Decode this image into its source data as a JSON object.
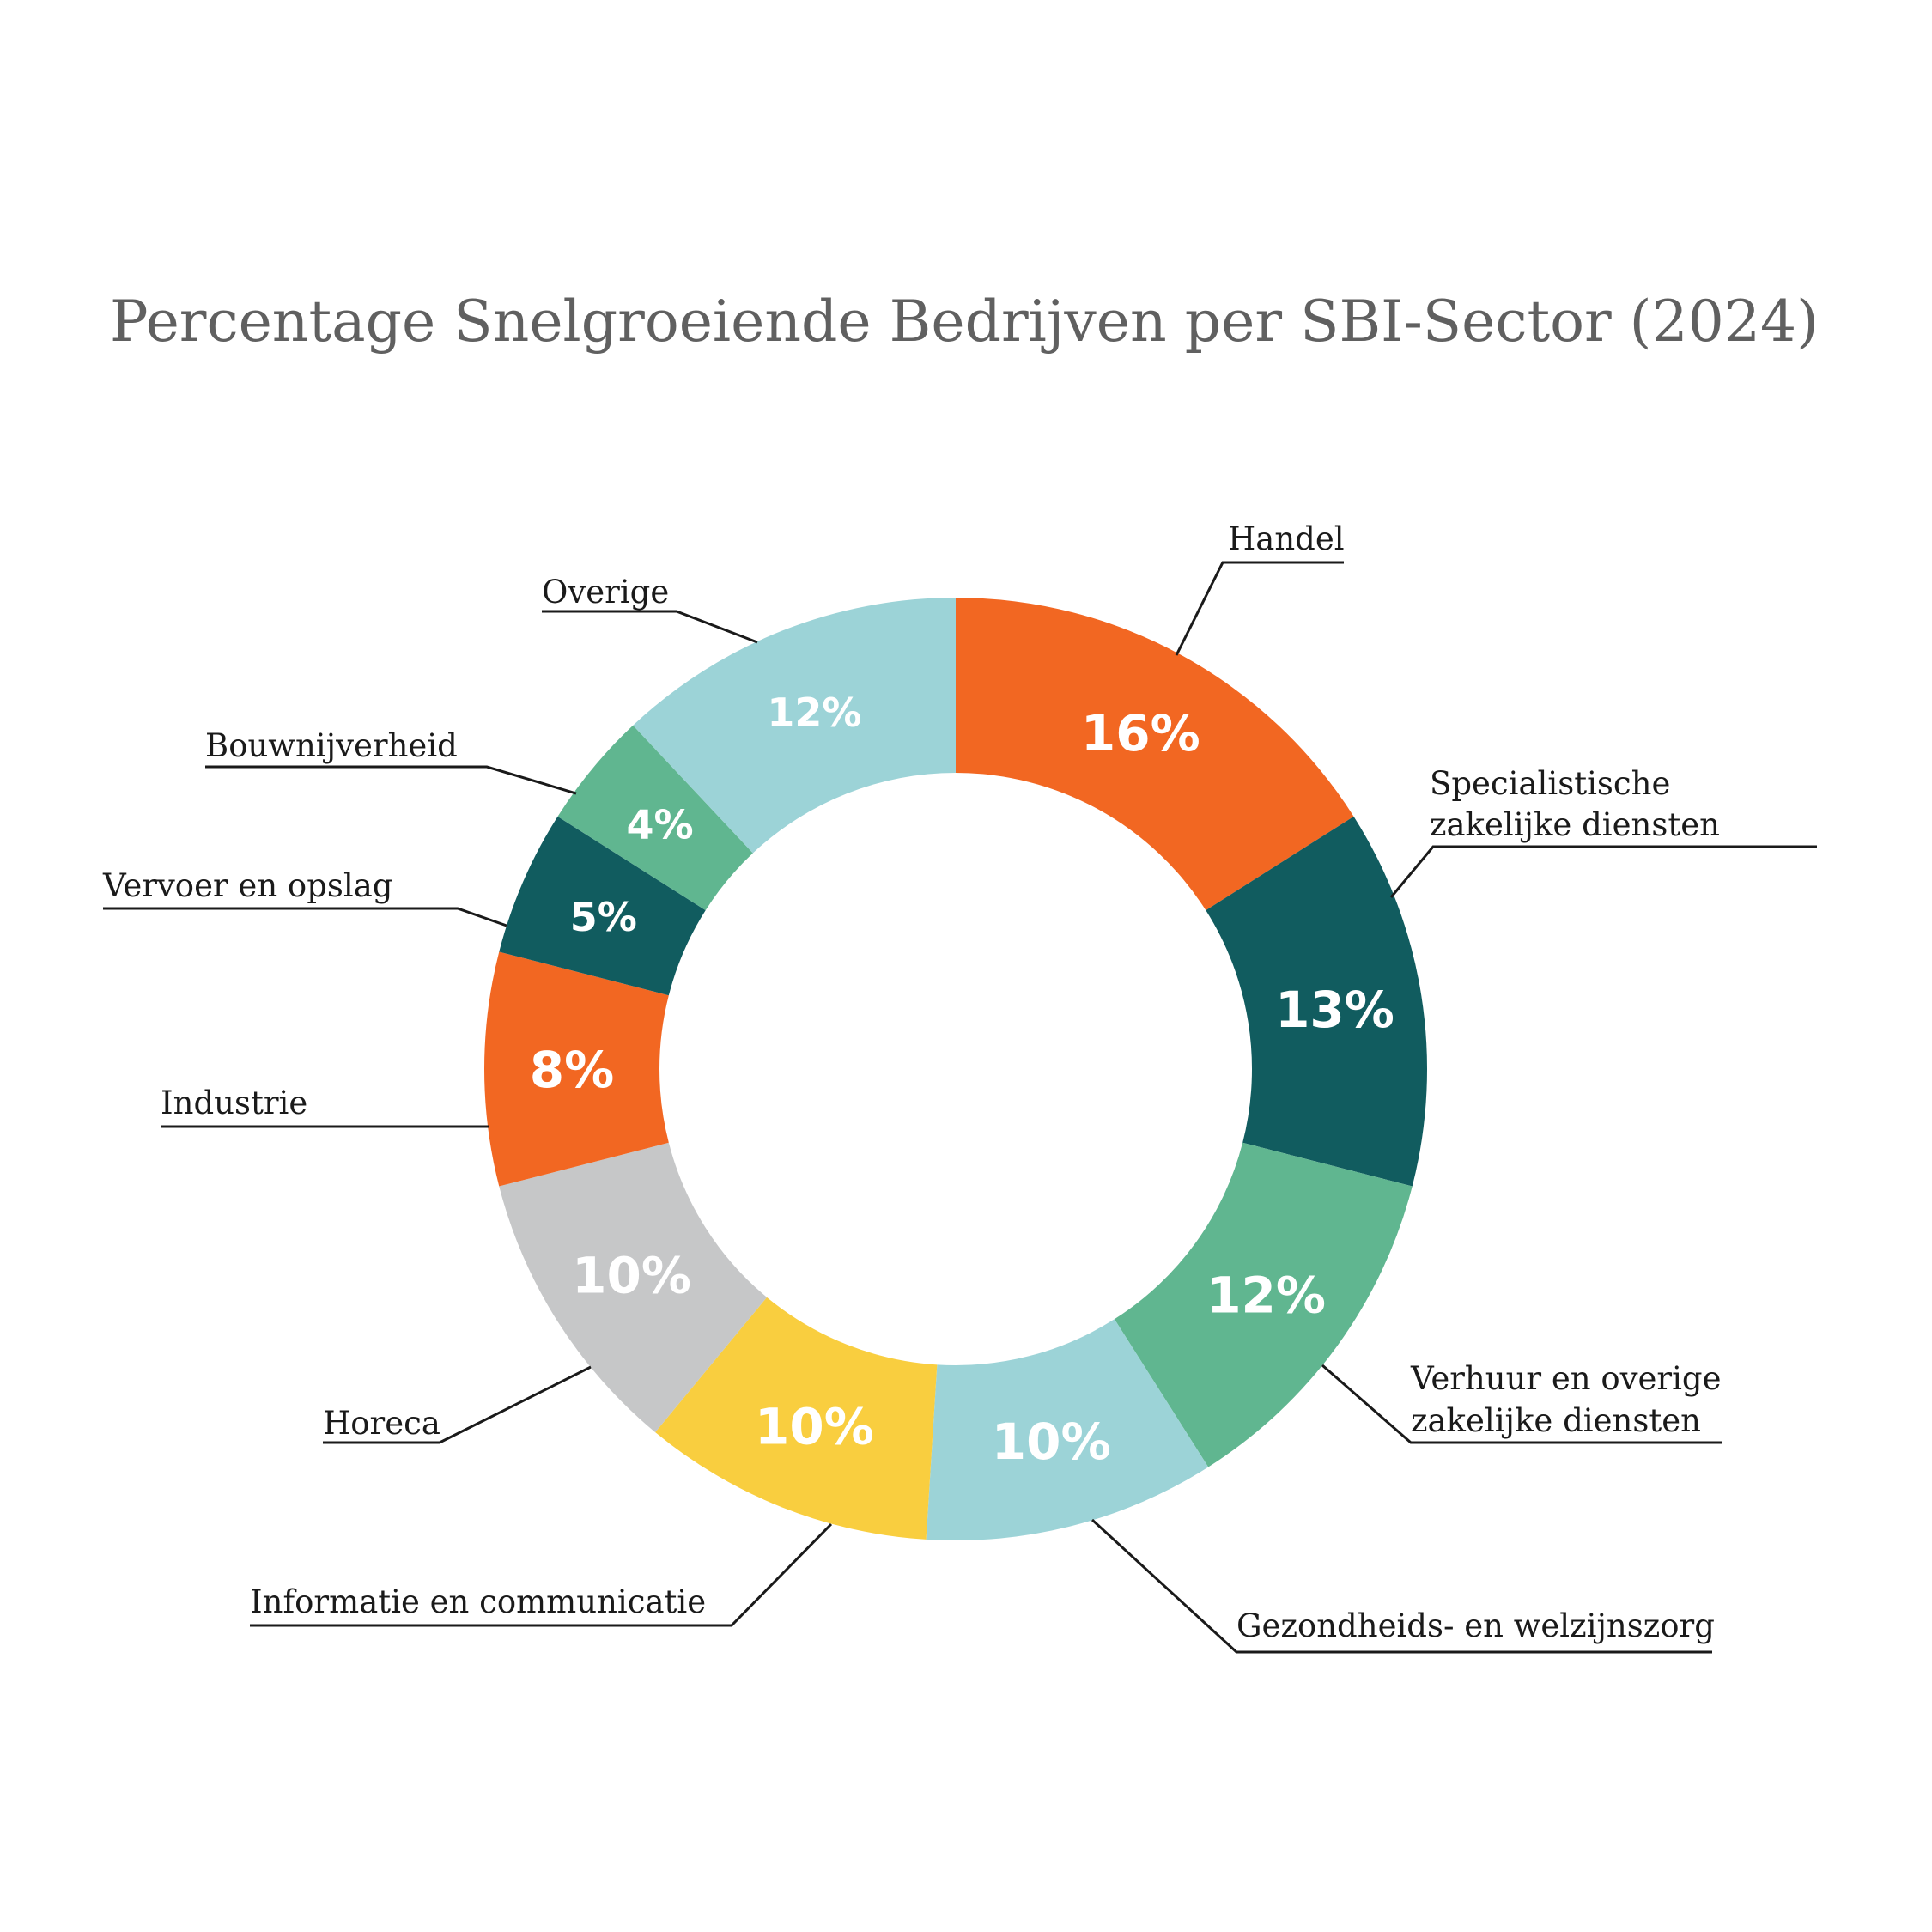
{
  "chart_data": {
    "type": "pie",
    "variant": "donut",
    "title": "Percentage Snelgroeiende Bedrijven per SBI-Sector (2024)",
    "unit": "%",
    "slices": [
      {
        "label": "Handel",
        "value": 16,
        "display": "16%",
        "color": "#F26722"
      },
      {
        "label": "Specialistische zakelijke diensten",
        "value": 13,
        "display": "13%",
        "color": "#115C5F"
      },
      {
        "label": "Verhuur en overige zakelijke diensten",
        "value": 12,
        "display": "12%",
        "color": "#60B690"
      },
      {
        "label": "Gezondheids- en welzijnszorg",
        "value": 10,
        "display": "10%",
        "color": "#9CD3D7"
      },
      {
        "label": "Informatie en communicatie",
        "value": 10,
        "display": "10%",
        "color": "#F9CE3F"
      },
      {
        "label": "Horeca",
        "value": 10,
        "display": "10%",
        "color": "#C6C7C8"
      },
      {
        "label": "Industrie",
        "value": 8,
        "display": "8%",
        "color": "#F26722"
      },
      {
        "label": "Vervoer en opslag",
        "value": 5,
        "display": "5%",
        "color": "#115C5F"
      },
      {
        "label": "Bouwnijverheid",
        "value": 4,
        "display": "4%",
        "color": "#60B690"
      },
      {
        "label": "Overige",
        "value": 12,
        "display": "12%",
        "color": "#9CD3D7"
      }
    ]
  }
}
